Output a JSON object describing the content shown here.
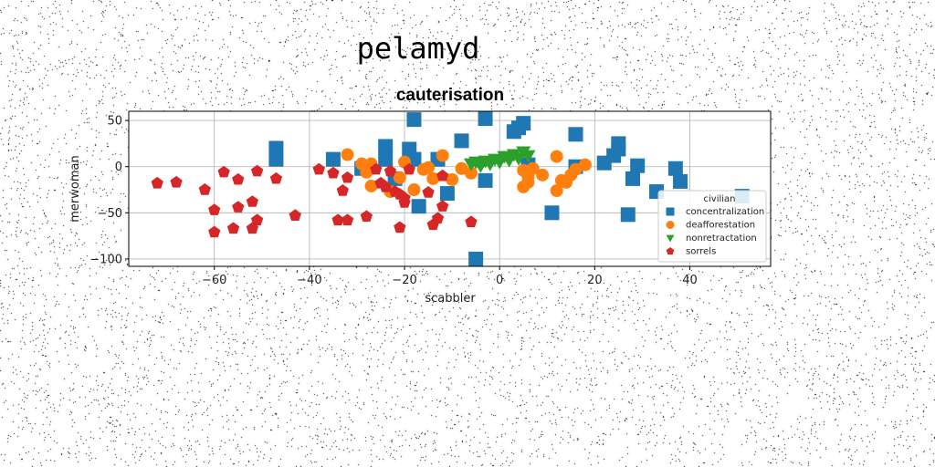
{
  "suptitle": "pelamyd",
  "chart_data": {
    "type": "scatter",
    "title": "cauterisation",
    "xlabel": "scabbler",
    "ylabel": "merwoman",
    "xlim": [
      -78,
      57
    ],
    "ylim": [
      -108,
      60
    ],
    "xticks": [
      -60,
      -40,
      -20,
      0,
      20,
      40
    ],
    "yticks": [
      50,
      0,
      -50,
      -100
    ],
    "grid": true,
    "legend": {
      "position": "lower-right",
      "title": "civilian",
      "entries": [
        "concentralization",
        "deafforestation",
        "nonretractation",
        "sorrels"
      ]
    },
    "series": [
      {
        "name": "concentralization",
        "marker": "square",
        "color": "#1f77b4",
        "points": [
          [
            -47,
            20
          ],
          [
            -47,
            8
          ],
          [
            -35,
            8
          ],
          [
            -29,
            -2
          ],
          [
            -24,
            22
          ],
          [
            -24,
            8
          ],
          [
            -22,
            -13
          ],
          [
            -19,
            19
          ],
          [
            -18,
            51
          ],
          [
            -18,
            8
          ],
          [
            -17,
            -43
          ],
          [
            -13,
            8
          ],
          [
            -11,
            -29
          ],
          [
            -8,
            28
          ],
          [
            -5,
            -100
          ],
          [
            -3,
            -15
          ],
          [
            -3,
            52
          ],
          [
            3,
            38
          ],
          [
            4,
            42
          ],
          [
            5,
            47
          ],
          [
            6,
            2
          ],
          [
            11,
            -50
          ],
          [
            16,
            35
          ],
          [
            16,
            0
          ],
          [
            22,
            4
          ],
          [
            24,
            12
          ],
          [
            25,
            19
          ],
          [
            25,
            25
          ],
          [
            27,
            -52
          ],
          [
            28,
            -13
          ],
          [
            29,
            1
          ],
          [
            33,
            -27
          ],
          [
            37,
            -2
          ],
          [
            38,
            -16
          ],
          [
            51,
            -32
          ]
        ]
      },
      {
        "name": "deafforestation",
        "marker": "circle",
        "color": "#ff7f0e",
        "points": [
          [
            -32,
            13
          ],
          [
            -29,
            3
          ],
          [
            -28,
            -6
          ],
          [
            -27,
            3
          ],
          [
            -27,
            -21
          ],
          [
            -23,
            -27
          ],
          [
            -21,
            -12
          ],
          [
            -20,
            5
          ],
          [
            -18,
            -25
          ],
          [
            -16,
            -3
          ],
          [
            -15,
            -1
          ],
          [
            -14,
            -13
          ],
          [
            -12,
            12
          ],
          [
            -10,
            -14
          ],
          [
            -8,
            -2
          ],
          [
            -6,
            -7
          ],
          [
            5,
            -22
          ],
          [
            5,
            -4
          ],
          [
            6,
            -11
          ],
          [
            6,
            -17
          ],
          [
            7,
            -2
          ],
          [
            9,
            -9
          ],
          [
            12,
            11
          ],
          [
            12,
            -26
          ],
          [
            13,
            -15
          ],
          [
            14,
            -17
          ],
          [
            15,
            -9
          ],
          [
            16,
            -3
          ],
          [
            18,
            2
          ]
        ]
      },
      {
        "name": "nonretractation",
        "marker": "triangle-down",
        "color": "#2ca02c",
        "points": [
          [
            -6,
            3
          ],
          [
            -5,
            5
          ],
          [
            -4,
            1
          ],
          [
            -3,
            6
          ],
          [
            -2,
            3
          ],
          [
            -1,
            8
          ],
          [
            0,
            5
          ],
          [
            1,
            11
          ],
          [
            2,
            7
          ],
          [
            3,
            13
          ],
          [
            4,
            9
          ],
          [
            5,
            16
          ],
          [
            6,
            12
          ]
        ]
      },
      {
        "name": "sorrels",
        "marker": "pentagon",
        "color": "#d62728",
        "points": [
          [
            -72,
            -18
          ],
          [
            -68,
            -17
          ],
          [
            -62,
            -25
          ],
          [
            -60,
            -47
          ],
          [
            -60,
            -71
          ],
          [
            -58,
            -6
          ],
          [
            -56,
            -67
          ],
          [
            -55,
            -14
          ],
          [
            -55,
            -44
          ],
          [
            -52,
            -38
          ],
          [
            -52,
            -67
          ],
          [
            -51,
            -58
          ],
          [
            -51,
            -5
          ],
          [
            -47,
            -13
          ],
          [
            -43,
            -53
          ],
          [
            -38,
            -3
          ],
          [
            -35,
            -7
          ],
          [
            -34,
            -58
          ],
          [
            -33,
            -26
          ],
          [
            -32,
            -58
          ],
          [
            -32,
            -12
          ],
          [
            -28,
            -54
          ],
          [
            -26,
            -3
          ],
          [
            -25,
            -18
          ],
          [
            -24,
            -22
          ],
          [
            -23,
            -5
          ],
          [
            -22,
            -27
          ],
          [
            -21,
            -30
          ],
          [
            -21,
            -66
          ],
          [
            -20,
            -34
          ],
          [
            -20,
            -39
          ],
          [
            -19,
            -3
          ],
          [
            -15,
            -28
          ],
          [
            -14,
            -63
          ],
          [
            -13,
            -56
          ],
          [
            -12,
            -43
          ],
          [
            -12,
            -10
          ],
          [
            -6,
            -60
          ]
        ]
      }
    ]
  }
}
